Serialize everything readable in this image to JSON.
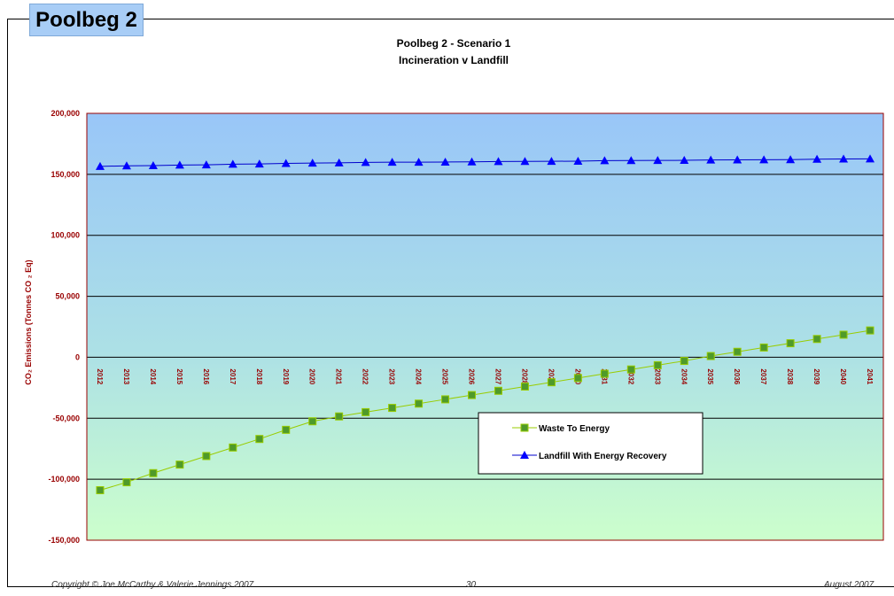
{
  "page": {
    "tab_title": "Poolbeg 2",
    "footer_left": "Copyright © Joe McCarthy & Valerie Jennings 2007",
    "footer_center": "30",
    "footer_right": "August 2007"
  },
  "chart_data": {
    "type": "line",
    "title": "Poolbeg 2 - Scenario 1",
    "subtitle": "Incineration v Landfill",
    "xlabel": "",
    "ylabel": "CO₂ Emissions (Tonnes CO ₂ Eq)",
    "ylim": [
      -150000,
      200000
    ],
    "yticks": [
      200000,
      150000,
      100000,
      50000,
      0,
      -50000,
      -100000,
      -150000
    ],
    "ytick_labels": [
      "200,000",
      "150,000",
      "100,000",
      "50,000",
      "0",
      "-50,000",
      "-100,000",
      "-150,000"
    ],
    "grid": "horizontal",
    "legend_position": "lower-center",
    "categories": [
      "2012",
      "2013",
      "2014",
      "2015",
      "2016",
      "2017",
      "2018",
      "2019",
      "2020",
      "2021",
      "2022",
      "2023",
      "2024",
      "2025",
      "2026",
      "2027",
      "2028",
      "2029",
      "2030",
      "2031",
      "2032",
      "2033",
      "2034",
      "2035",
      "2036",
      "2037",
      "2038",
      "2039",
      "2040",
      "2041"
    ],
    "series": [
      {
        "name": "Waste To Energy",
        "color": "#99cc00",
        "marker": "square",
        "marker_color": "#4f9a2a",
        "values": [
          -109000,
          -102500,
          -95000,
          -88000,
          -81000,
          -74000,
          -67000,
          -59500,
          -52500,
          -48500,
          -45000,
          -41500,
          -38000,
          -34500,
          -31000,
          -27500,
          -24000,
          -20500,
          -17000,
          -13500,
          -10000,
          -6500,
          -3000,
          1000,
          4500,
          8000,
          11500,
          15000,
          18500,
          22000
        ]
      },
      {
        "name": "Landfill With Energy Recovery",
        "color": "#0000cc",
        "marker": "triangle",
        "marker_color": "#0000ff",
        "values": [
          156500,
          157000,
          157200,
          157600,
          157800,
          158300,
          158500,
          159000,
          159200,
          159400,
          159800,
          160000,
          160000,
          160100,
          160200,
          160500,
          160600,
          160700,
          160800,
          161200,
          161300,
          161400,
          161500,
          161800,
          161900,
          162000,
          162100,
          162400,
          162600,
          162700
        ]
      }
    ],
    "colors": {
      "plot_border": "#990000",
      "axis_text": "#990000",
      "gradient_top": "#99c6f8",
      "gradient_mid": "#ace0e6",
      "gradient_bottom": "#ccffcc"
    }
  }
}
